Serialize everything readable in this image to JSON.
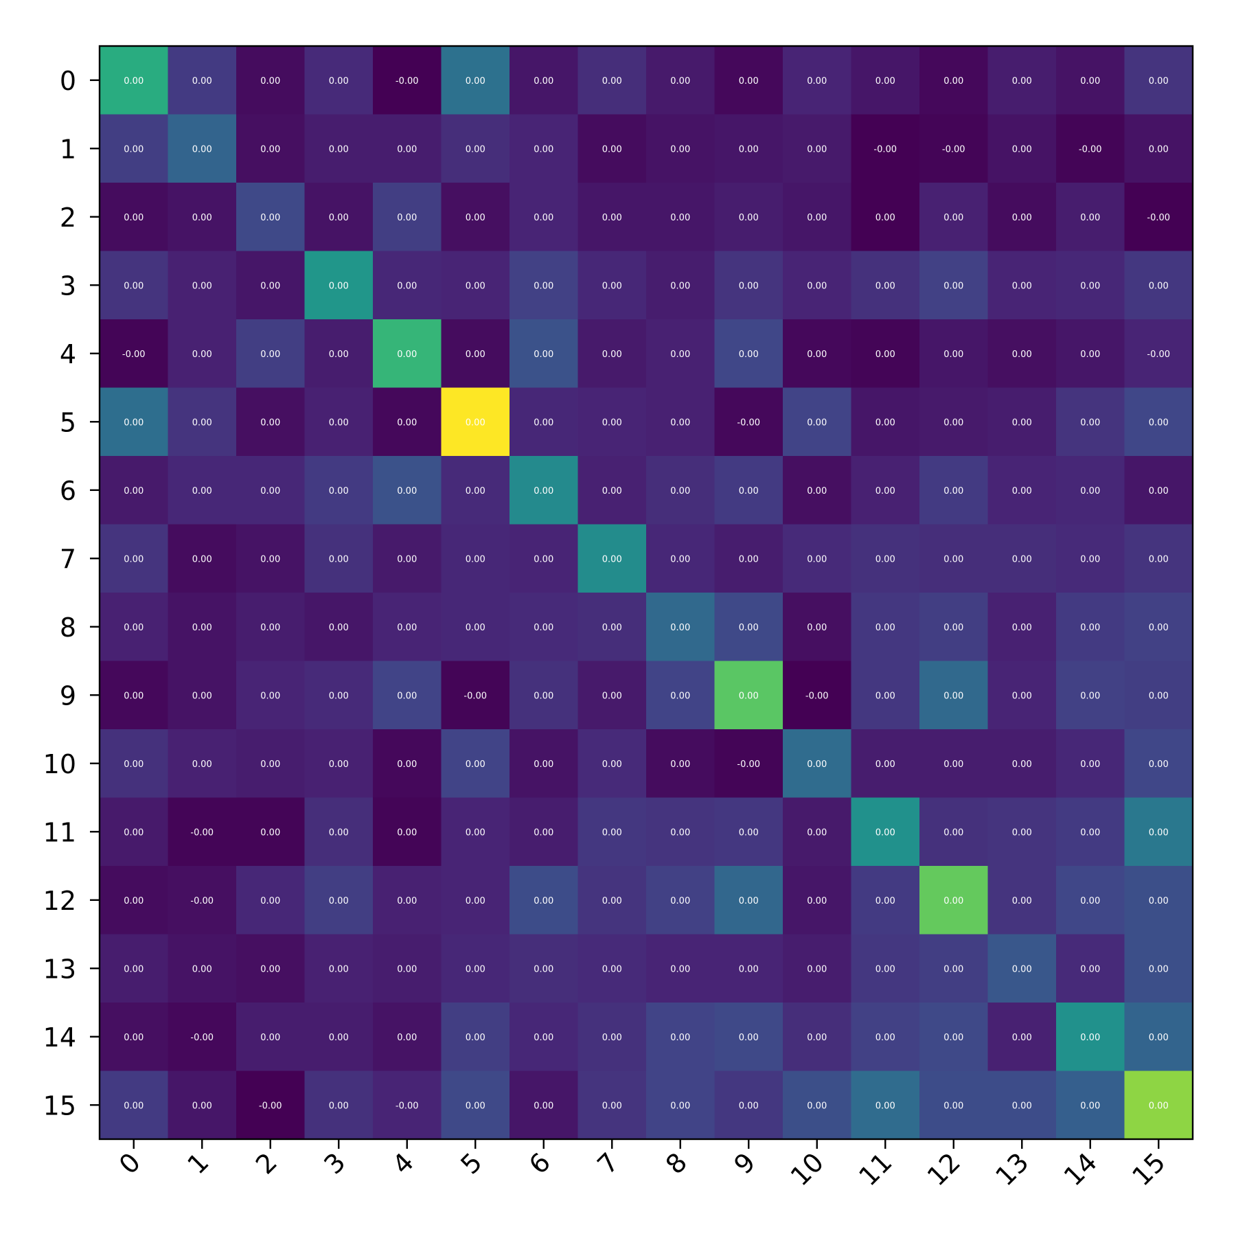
{
  "chart_data": {
    "type": "heatmap",
    "colormap": "viridis",
    "rows": [
      "0",
      "1",
      "2",
      "3",
      "4",
      "5",
      "6",
      "7",
      "8",
      "9",
      "10",
      "11",
      "12",
      "13",
      "14",
      "15"
    ],
    "columns": [
      "0",
      "1",
      "2",
      "3",
      "4",
      "5",
      "6",
      "7",
      "8",
      "9",
      "10",
      "11",
      "12",
      "13",
      "14",
      "15"
    ],
    "colorbar": false,
    "grid": false,
    "cell_labels": [
      [
        "0.00",
        "0.00",
        "0.00",
        "0.00",
        "-0.00",
        "0.00",
        "0.00",
        "0.00",
        "0.00",
        "0.00",
        "0.00",
        "0.00",
        "0.00",
        "0.00",
        "0.00",
        "0.00"
      ],
      [
        "0.00",
        "0.00",
        "0.00",
        "0.00",
        "0.00",
        "0.00",
        "0.00",
        "0.00",
        "0.00",
        "0.00",
        "0.00",
        "-0.00",
        "-0.00",
        "0.00",
        "-0.00",
        "0.00"
      ],
      [
        "0.00",
        "0.00",
        "0.00",
        "0.00",
        "0.00",
        "0.00",
        "0.00",
        "0.00",
        "0.00",
        "0.00",
        "0.00",
        "0.00",
        "0.00",
        "0.00",
        "0.00",
        "-0.00"
      ],
      [
        "0.00",
        "0.00",
        "0.00",
        "0.00",
        "0.00",
        "0.00",
        "0.00",
        "0.00",
        "0.00",
        "0.00",
        "0.00",
        "0.00",
        "0.00",
        "0.00",
        "0.00",
        "0.00"
      ],
      [
        "-0.00",
        "0.00",
        "0.00",
        "0.00",
        "0.00",
        "0.00",
        "0.00",
        "0.00",
        "0.00",
        "0.00",
        "0.00",
        "0.00",
        "0.00",
        "0.00",
        "0.00",
        "-0.00"
      ],
      [
        "0.00",
        "0.00",
        "0.00",
        "0.00",
        "0.00",
        "0.00",
        "0.00",
        "0.00",
        "0.00",
        "-0.00",
        "0.00",
        "0.00",
        "0.00",
        "0.00",
        "0.00",
        "0.00"
      ],
      [
        "0.00",
        "0.00",
        "0.00",
        "0.00",
        "0.00",
        "0.00",
        "0.00",
        "0.00",
        "0.00",
        "0.00",
        "0.00",
        "0.00",
        "0.00",
        "0.00",
        "0.00",
        "0.00"
      ],
      [
        "0.00",
        "0.00",
        "0.00",
        "0.00",
        "0.00",
        "0.00",
        "0.00",
        "0.00",
        "0.00",
        "0.00",
        "0.00",
        "0.00",
        "0.00",
        "0.00",
        "0.00",
        "0.00"
      ],
      [
        "0.00",
        "0.00",
        "0.00",
        "0.00",
        "0.00",
        "0.00",
        "0.00",
        "0.00",
        "0.00",
        "0.00",
        "0.00",
        "0.00",
        "0.00",
        "0.00",
        "0.00",
        "0.00"
      ],
      [
        "0.00",
        "0.00",
        "0.00",
        "0.00",
        "0.00",
        "-0.00",
        "0.00",
        "0.00",
        "0.00",
        "0.00",
        "-0.00",
        "0.00",
        "0.00",
        "0.00",
        "0.00",
        "0.00"
      ],
      [
        "0.00",
        "0.00",
        "0.00",
        "0.00",
        "0.00",
        "0.00",
        "0.00",
        "0.00",
        "0.00",
        "-0.00",
        "0.00",
        "0.00",
        "0.00",
        "0.00",
        "0.00",
        "0.00"
      ],
      [
        "0.00",
        "-0.00",
        "0.00",
        "0.00",
        "0.00",
        "0.00",
        "0.00",
        "0.00",
        "0.00",
        "0.00",
        "0.00",
        "0.00",
        "0.00",
        "0.00",
        "0.00",
        "0.00"
      ],
      [
        "0.00",
        "-0.00",
        "0.00",
        "0.00",
        "0.00",
        "0.00",
        "0.00",
        "0.00",
        "0.00",
        "0.00",
        "0.00",
        "0.00",
        "0.00",
        "0.00",
        "0.00",
        "0.00"
      ],
      [
        "0.00",
        "0.00",
        "0.00",
        "0.00",
        "0.00",
        "0.00",
        "0.00",
        "0.00",
        "0.00",
        "0.00",
        "0.00",
        "0.00",
        "0.00",
        "0.00",
        "0.00",
        "0.00"
      ],
      [
        "0.00",
        "-0.00",
        "0.00",
        "0.00",
        "0.00",
        "0.00",
        "0.00",
        "0.00",
        "0.00",
        "0.00",
        "0.00",
        "0.00",
        "0.00",
        "0.00",
        "0.00",
        "0.00"
      ],
      [
        "0.00",
        "0.00",
        "-0.00",
        "0.00",
        "-0.00",
        "0.00",
        "0.00",
        "0.00",
        "0.00",
        "0.00",
        "0.00",
        "0.00",
        "0.00",
        "0.00",
        "0.00",
        "0.00"
      ]
    ],
    "relative_intensity": [
      [
        0.62,
        0.17,
        0.03,
        0.12,
        0.0,
        0.37,
        0.06,
        0.13,
        0.07,
        0.02,
        0.1,
        0.06,
        0.02,
        0.08,
        0.05,
        0.15
      ],
      [
        0.18,
        0.32,
        0.04,
        0.08,
        0.08,
        0.13,
        0.1,
        0.03,
        0.05,
        0.06,
        0.07,
        0.0,
        0.01,
        0.05,
        0.01,
        0.05
      ],
      [
        0.03,
        0.05,
        0.22,
        0.05,
        0.18,
        0.04,
        0.1,
        0.06,
        0.06,
        0.08,
        0.06,
        0.0,
        0.09,
        0.03,
        0.08,
        0.0
      ],
      [
        0.15,
        0.09,
        0.06,
        0.52,
        0.11,
        0.1,
        0.19,
        0.11,
        0.08,
        0.15,
        0.1,
        0.14,
        0.19,
        0.1,
        0.11,
        0.16
      ],
      [
        0.01,
        0.09,
        0.18,
        0.08,
        0.66,
        0.03,
        0.25,
        0.07,
        0.09,
        0.21,
        0.02,
        0.01,
        0.06,
        0.04,
        0.06,
        0.1
      ],
      [
        0.36,
        0.15,
        0.04,
        0.09,
        0.02,
        1.0,
        0.11,
        0.1,
        0.09,
        0.02,
        0.2,
        0.06,
        0.07,
        0.08,
        0.15,
        0.21
      ],
      [
        0.07,
        0.11,
        0.11,
        0.17,
        0.25,
        0.12,
        0.47,
        0.09,
        0.13,
        0.17,
        0.04,
        0.09,
        0.17,
        0.1,
        0.11,
        0.06
      ],
      [
        0.15,
        0.03,
        0.05,
        0.14,
        0.07,
        0.11,
        0.1,
        0.48,
        0.11,
        0.08,
        0.12,
        0.14,
        0.13,
        0.13,
        0.12,
        0.15
      ],
      [
        0.09,
        0.05,
        0.08,
        0.06,
        0.1,
        0.11,
        0.12,
        0.13,
        0.34,
        0.22,
        0.04,
        0.16,
        0.18,
        0.09,
        0.17,
        0.19
      ],
      [
        0.02,
        0.05,
        0.1,
        0.12,
        0.2,
        0.01,
        0.14,
        0.07,
        0.2,
        0.74,
        0.0,
        0.16,
        0.34,
        0.1,
        0.19,
        0.18
      ],
      [
        0.14,
        0.09,
        0.08,
        0.09,
        0.02,
        0.2,
        0.05,
        0.12,
        0.03,
        0.01,
        0.35,
        0.08,
        0.08,
        0.08,
        0.11,
        0.21
      ],
      [
        0.07,
        0.01,
        0.01,
        0.13,
        0.01,
        0.1,
        0.08,
        0.16,
        0.15,
        0.16,
        0.07,
        0.5,
        0.14,
        0.15,
        0.17,
        0.4
      ],
      [
        0.03,
        0.04,
        0.11,
        0.18,
        0.09,
        0.1,
        0.23,
        0.15,
        0.19,
        0.33,
        0.06,
        0.17,
        0.76,
        0.15,
        0.21,
        0.24
      ],
      [
        0.08,
        0.05,
        0.04,
        0.09,
        0.08,
        0.11,
        0.13,
        0.12,
        0.1,
        0.1,
        0.08,
        0.16,
        0.18,
        0.27,
        0.12,
        0.24
      ],
      [
        0.04,
        0.02,
        0.08,
        0.08,
        0.05,
        0.18,
        0.11,
        0.14,
        0.2,
        0.22,
        0.13,
        0.19,
        0.22,
        0.09,
        0.5,
        0.32
      ],
      [
        0.17,
        0.06,
        0.0,
        0.14,
        0.1,
        0.22,
        0.06,
        0.15,
        0.2,
        0.16,
        0.24,
        0.35,
        0.23,
        0.23,
        0.3,
        0.83
      ]
    ]
  }
}
